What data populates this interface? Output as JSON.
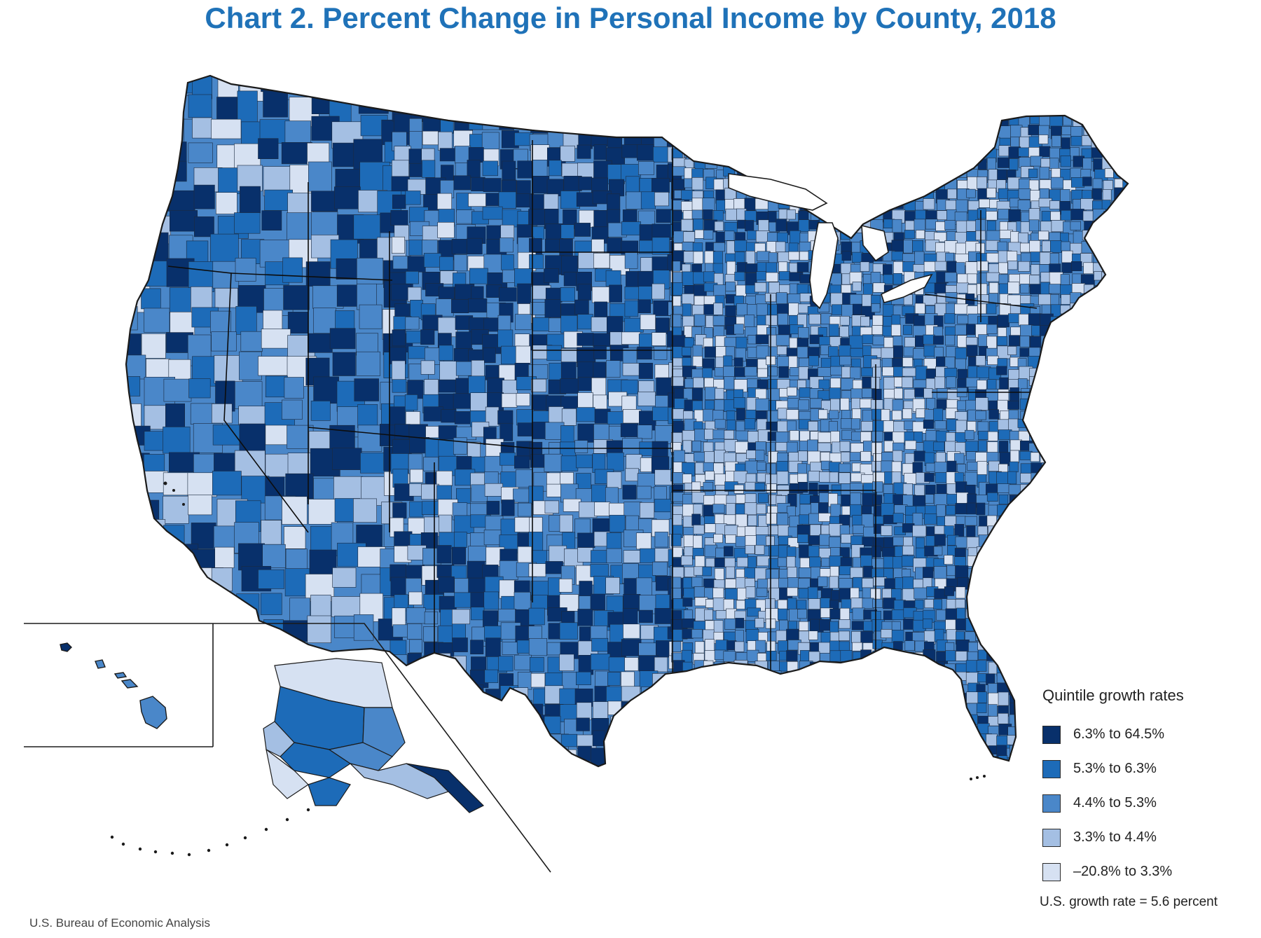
{
  "title": "Chart 2. Percent Change in Personal Income by County, 2018",
  "legend": {
    "title": "Quintile growth rates",
    "items": [
      {
        "label": "6.3% to 64.5%",
        "color": "#08306b"
      },
      {
        "label": "5.3% to 6.3%",
        "color": "#1d6bb8"
      },
      {
        "label": "4.4% to 5.3%",
        "color": "#4a87c9"
      },
      {
        "label": "3.3% to 4.4%",
        "color": "#a4bfe3"
      },
      {
        "label": "–20.8% to 3.3%",
        "color": "#d6e1f2"
      }
    ]
  },
  "us_rate": "U.S. growth rate = 5.6 percent",
  "source": "U.S. Bureau of Economic Analysis",
  "colors": {
    "title": "#1f72b8",
    "border": "#1b1b1b",
    "q1": "#08306b",
    "q2": "#1d6bb8",
    "q3": "#4a87c9",
    "q4": "#a4bfe3",
    "q5": "#d6e1f2"
  }
}
